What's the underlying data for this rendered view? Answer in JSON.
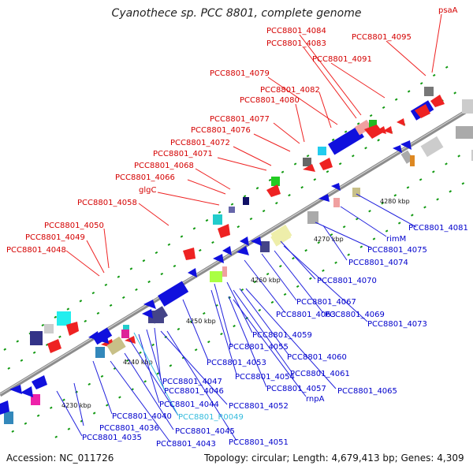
{
  "title": "Cyanothece sp. PCC 8801, complete genome",
  "accession": "Accession: NC_011726",
  "summary": "Topology: circular; Length: 4,679,413 bp; Genes: 4,309",
  "colors": {
    "upper_label": "#d40000",
    "lower_label": "#0000cc",
    "rna_label": "#33bbdd",
    "backbone": "#8c8c8c",
    "tick": "#119911"
  },
  "ticks": [
    "4230 kbp",
    "4240 kbp",
    "4250 kbp",
    "4260 kbp",
    "4270 kbp",
    "4280 kbp"
  ],
  "upper_labels": [
    "psaA",
    "PCC8801_4095",
    "PCC8801_4084",
    "PCC8801_4083",
    "PCC8801_4091",
    "PCC8801_4079",
    "PCC8801_4082",
    "PCC8801_4080",
    "PCC8801_4077",
    "PCC8801_4076",
    "PCC8801_4072",
    "PCC8801_4071",
    "PCC8801_4068",
    "PCC8801_4066",
    "glgC",
    "PCC8801_4058",
    "PCC8801_4050",
    "PCC8801_4049",
    "PCC8801_4048"
  ],
  "lower_labels": [
    "PCC8801_4081",
    "rimM",
    "PCC8801_4075",
    "PCC8801_4074",
    "PCC8801_4070",
    "PCC8801_4067",
    "PCC8801_4063",
    "PCC8801_4069",
    "PCC8801_4073",
    "PCC8801_4059",
    "PCC8801_4055",
    "PCC8801_4060",
    "PCC8801_4053",
    "PCC8801_4061",
    "PCC8801_4054",
    "PCC8801_4057",
    "rnpA",
    "PCC8801_4065",
    "PCC8801_4047",
    "PCC8801_4046",
    "PCC8801_4044",
    "PCC8801_4052",
    "PCC8801_4040",
    "PCC8801_R0049",
    "PCC8801_4036",
    "PCC8801_4045",
    "PCC8801_4035",
    "PCC8801_4043",
    "PCC8801_4051"
  ]
}
